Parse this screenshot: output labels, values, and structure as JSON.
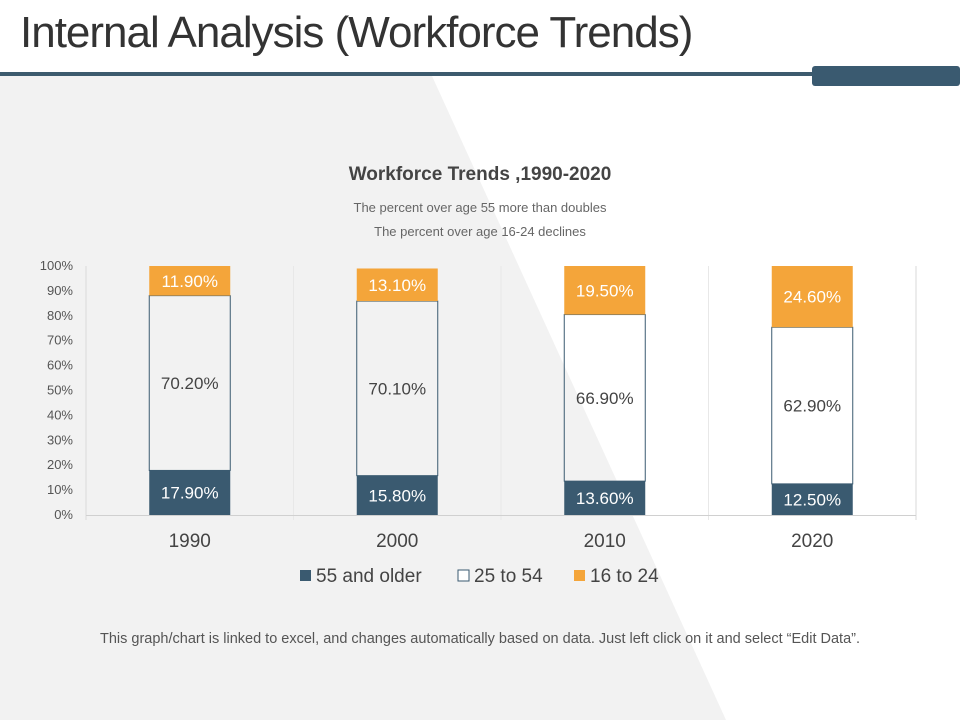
{
  "slide": {
    "title": "Internal Analysis (Workforce Trends)",
    "footnote": "This graph/chart is linked to excel, and changes automatically based on data. Just left click on it and select “Edit Data”."
  },
  "colors": {
    "accent": "#3a5a70",
    "orange": "#f4a53a",
    "background_panel": "#f2f2f2"
  },
  "chart_data": {
    "type": "bar",
    "stacked": true,
    "percent_stacked": true,
    "title": "Workforce Trends ,1990-2020",
    "subtitles": [
      "The percent over age 55 more than doubles",
      "The percent over age 16-24 declines"
    ],
    "categories": [
      "1990",
      "2000",
      "2010",
      "2020"
    ],
    "ylim": [
      0,
      100
    ],
    "yticks": [
      "0%",
      "10%",
      "20%",
      "30%",
      "40%",
      "50%",
      "60%",
      "70%",
      "80%",
      "90%",
      "100%"
    ],
    "legend_position": "bottom",
    "series": [
      {
        "name": "55 and older",
        "values": [
          17.9,
          15.8,
          13.6,
          12.5
        ],
        "labels": [
          "17.90%",
          "15.80%",
          "13.60%",
          "12.50%"
        ],
        "color": "#3a5a70"
      },
      {
        "name": "25 to 54",
        "values": [
          70.2,
          70.1,
          66.9,
          62.9
        ],
        "labels": [
          "70.20%",
          "70.10%",
          "66.90%",
          "62.90%"
        ],
        "color": "none"
      },
      {
        "name": "16 to 24",
        "values": [
          11.9,
          13.1,
          19.5,
          24.6
        ],
        "labels": [
          "11.90%",
          "13.10%",
          "19.50%",
          "24.60%"
        ],
        "color": "#f4a53a"
      }
    ]
  }
}
